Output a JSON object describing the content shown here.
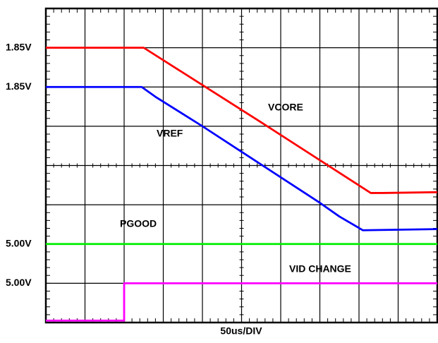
{
  "chart_data": {
    "type": "line",
    "xlabel": "50us/DIV",
    "xlim": [
      0,
      10
    ],
    "ylim": [
      0,
      8
    ],
    "xgrid": [
      0,
      1,
      2,
      3,
      4,
      5,
      6,
      7,
      8,
      9,
      10
    ],
    "ygrid": [
      0,
      1,
      2,
      3,
      4,
      5,
      6,
      7,
      8
    ],
    "yticks": [
      {
        "value": 7,
        "label": "1.85V"
      },
      {
        "value": 6,
        "label": "1.85V"
      },
      {
        "value": 2,
        "label": "5.00V"
      },
      {
        "value": 1,
        "label": "5.00V"
      }
    ],
    "grid": true,
    "series": [
      {
        "name": "VCORE",
        "color": "#ff0000",
        "x": [
          0,
          2.5,
          5.5,
          8.3,
          8.6,
          10
        ],
        "values": [
          7,
          7,
          5.1,
          3.3,
          3.3,
          3.32
        ]
      },
      {
        "name": "VREF",
        "color": "#0000ff",
        "x": [
          0,
          2.45,
          2.8,
          4,
          5,
          6,
          7,
          7.5,
          8.1,
          10
        ],
        "values": [
          6,
          6,
          5.75,
          5.0,
          4.35,
          3.7,
          3.05,
          2.7,
          2.35,
          2.38
        ]
      },
      {
        "name": "PGOOD",
        "color": "#00ee00",
        "x": [
          0,
          10
        ],
        "values": [
          2,
          2
        ]
      },
      {
        "name": "VID CHANGE",
        "color": "#ff00ff",
        "x": [
          0,
          2,
          2,
          10
        ],
        "values": [
          0.05,
          0.05,
          1,
          1
        ]
      }
    ]
  }
}
